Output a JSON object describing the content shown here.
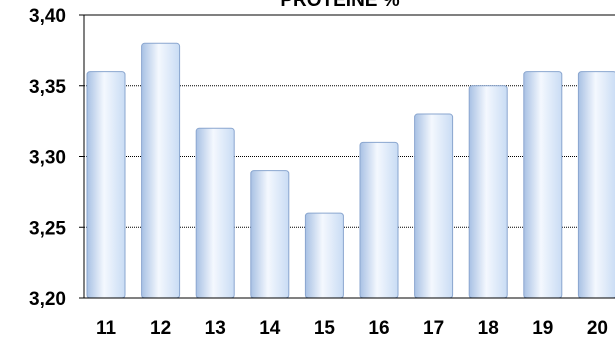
{
  "chart_data": {
    "type": "bar",
    "title": "PROTEINE %",
    "categories": [
      "11",
      "12",
      "13",
      "14",
      "15",
      "16",
      "17",
      "18",
      "19",
      "20"
    ],
    "values": [
      3.36,
      3.38,
      3.32,
      3.29,
      3.26,
      3.31,
      3.33,
      3.35,
      3.36,
      3.36
    ],
    "ylim": [
      3.2,
      3.4
    ],
    "yticks": [
      "3,20",
      "3,25",
      "3,30",
      "3,35",
      "3,40"
    ],
    "grid": true,
    "legend": "none",
    "colors": {
      "bar_fill_light": "#f4f8fe",
      "bar_fill_mid": "#c9dcf4",
      "bar_fill_dark": "#a8c1e4",
      "bar_stroke": "#8aa6cf",
      "axis": "#000000",
      "grid": "#000000"
    }
  }
}
